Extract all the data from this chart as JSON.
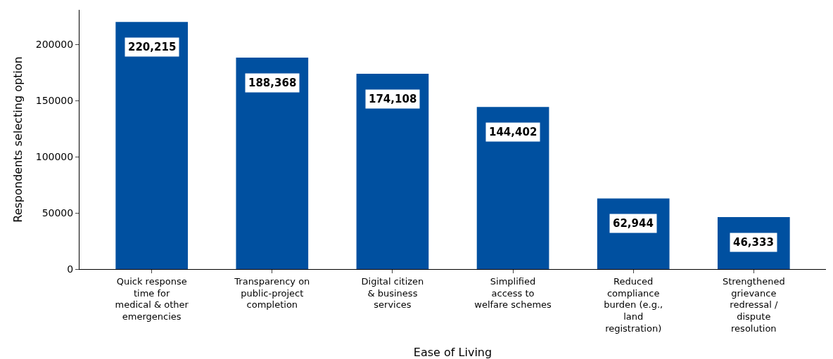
{
  "chart_data": {
    "type": "bar",
    "xlabel": "Ease of Living",
    "ylabel": "Respondents selecting option",
    "categories": [
      "Quick response\ntime for\nmedical & other\nemergencies",
      "Transparency on\npublic-project\ncompletion",
      "Digital citizen\n& business\nservices",
      "Simplified\naccess to\nwelfare schemes",
      "Reduced\ncompliance\nburden (e.g.,\nland\nregistration)",
      "Strengthened\ngrievance\nredressal /\ndispute\nresolution"
    ],
    "values": [
      220215,
      188368,
      174108,
      144402,
      62944,
      46333
    ],
    "value_labels": [
      "220,215",
      "188,368",
      "174,108",
      "144,402",
      "62,944",
      "46,333"
    ],
    "color": "#0050a0",
    "ylim": [
      0,
      231000
    ],
    "yticks": [
      0,
      50000,
      100000,
      150000,
      200000
    ],
    "legend": false
  }
}
